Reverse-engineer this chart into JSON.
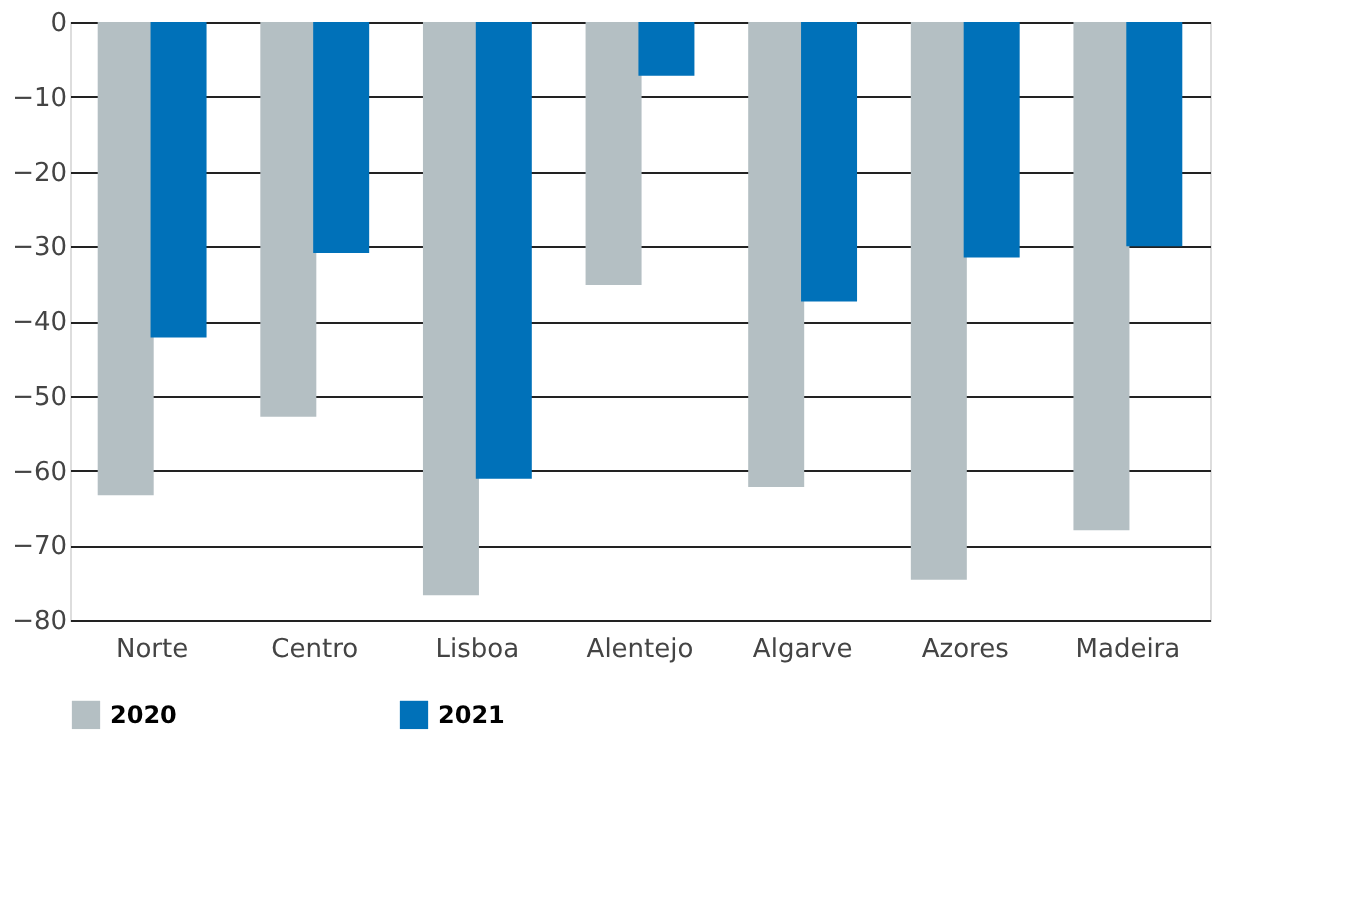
{
  "chart_data": {
    "type": "bar",
    "categories": [
      "Norte",
      "Centro",
      "Lisboa",
      "Alentejo",
      "Algarve",
      "Azores",
      "Madeira"
    ],
    "series": [
      {
        "name": "2020",
        "color": "#b4bfc3",
        "values": [
          -63.3,
          -52.8,
          -76.7,
          -35.2,
          -62.2,
          -74.6,
          -68.0
        ]
      },
      {
        "name": "2021",
        "color": "#0071b9",
        "values": [
          -42.2,
          -30.9,
          -61.1,
          -7.2,
          -37.4,
          -31.5,
          -30.0
        ]
      }
    ],
    "ylim": [
      -80,
      0
    ],
    "yticks": [
      -80,
      -70,
      -60,
      -50,
      -40,
      -30,
      -20,
      -10,
      0
    ],
    "grid": "y",
    "legend": "bottom"
  }
}
